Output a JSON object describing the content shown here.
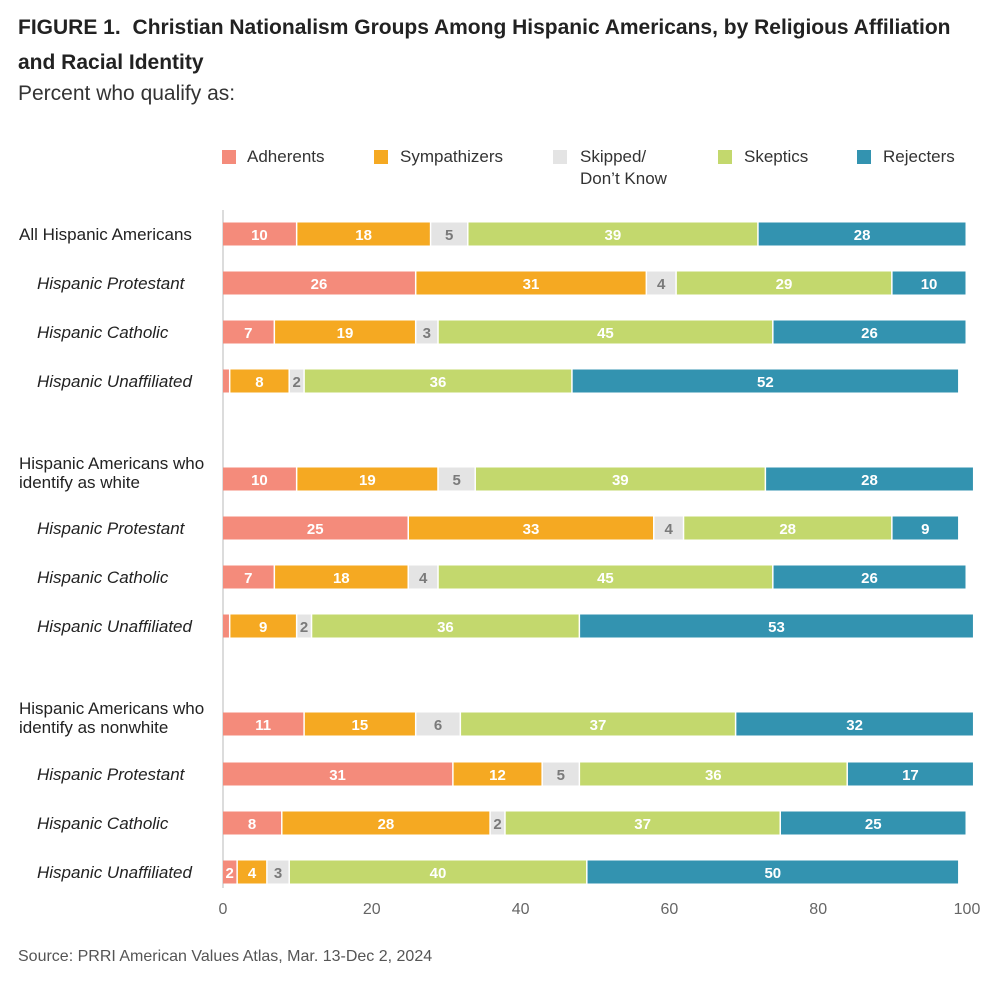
{
  "figure": {
    "label": "FIGURE 1.",
    "title": "Christian Nationalism Groups Among Hispanic Americans, by Religious Affiliation and Racial Identity",
    "subtitle": "Percent who qualify as:",
    "source": "Source: PRRI American Values Atlas, Mar. 13-Dec 2, 2024"
  },
  "chart_data": {
    "type": "bar",
    "orientation": "horizontal",
    "stacked": true,
    "xlim": [
      0,
      100
    ],
    "xticks": [
      "0",
      "20",
      "40",
      "60",
      "80",
      "100"
    ],
    "legend_position": "top",
    "series": [
      {
        "name": "Adherents",
        "color": "#f48b7b",
        "label_color": "#ffffff"
      },
      {
        "name": "Sympathizers",
        "color": "#f5a922",
        "label_color": "#ffffff"
      },
      {
        "name": "Skipped/\nDon’t Know",
        "color": "#e4e4e4",
        "label_color": "#7a7a7a"
      },
      {
        "name": "Skeptics",
        "color": "#c3d86d",
        "label_color": "#ffffff"
      },
      {
        "name": "Rejecters",
        "color": "#3393b0",
        "label_color": "#ffffff"
      }
    ],
    "rows": [
      {
        "label": "All Hispanic Americans",
        "italic": false,
        "values": [
          10,
          18,
          5,
          39,
          28
        ]
      },
      {
        "label": "Hispanic Protestant",
        "italic": true,
        "values": [
          26,
          31,
          4,
          29,
          10
        ]
      },
      {
        "label": "Hispanic Catholic",
        "italic": true,
        "values": [
          7,
          19,
          3,
          45,
          26
        ]
      },
      {
        "label": "Hispanic Unaffiliated",
        "italic": true,
        "values": [
          1,
          8,
          2,
          36,
          52
        ]
      },
      {
        "label": "Hispanic Americans who\nidentify as white",
        "italic": false,
        "values": [
          10,
          19,
          5,
          39,
          28
        ]
      },
      {
        "label": "Hispanic Protestant",
        "italic": true,
        "values": [
          25,
          33,
          4,
          28,
          9
        ]
      },
      {
        "label": "Hispanic Catholic",
        "italic": true,
        "values": [
          7,
          18,
          4,
          45,
          26
        ]
      },
      {
        "label": "Hispanic Unaffiliated",
        "italic": true,
        "values": [
          1,
          9,
          2,
          36,
          53
        ]
      },
      {
        "label": "Hispanic Americans who\nidentify as nonwhite",
        "italic": false,
        "values": [
          11,
          15,
          6,
          37,
          32
        ]
      },
      {
        "label": "Hispanic Protestant",
        "italic": true,
        "values": [
          31,
          12,
          5,
          36,
          17
        ]
      },
      {
        "label": "Hispanic Catholic",
        "italic": true,
        "values": [
          8,
          28,
          2,
          37,
          25
        ]
      },
      {
        "label": "Hispanic Unaffiliated",
        "italic": true,
        "values": [
          2,
          4,
          3,
          40,
          50
        ]
      }
    ]
  }
}
